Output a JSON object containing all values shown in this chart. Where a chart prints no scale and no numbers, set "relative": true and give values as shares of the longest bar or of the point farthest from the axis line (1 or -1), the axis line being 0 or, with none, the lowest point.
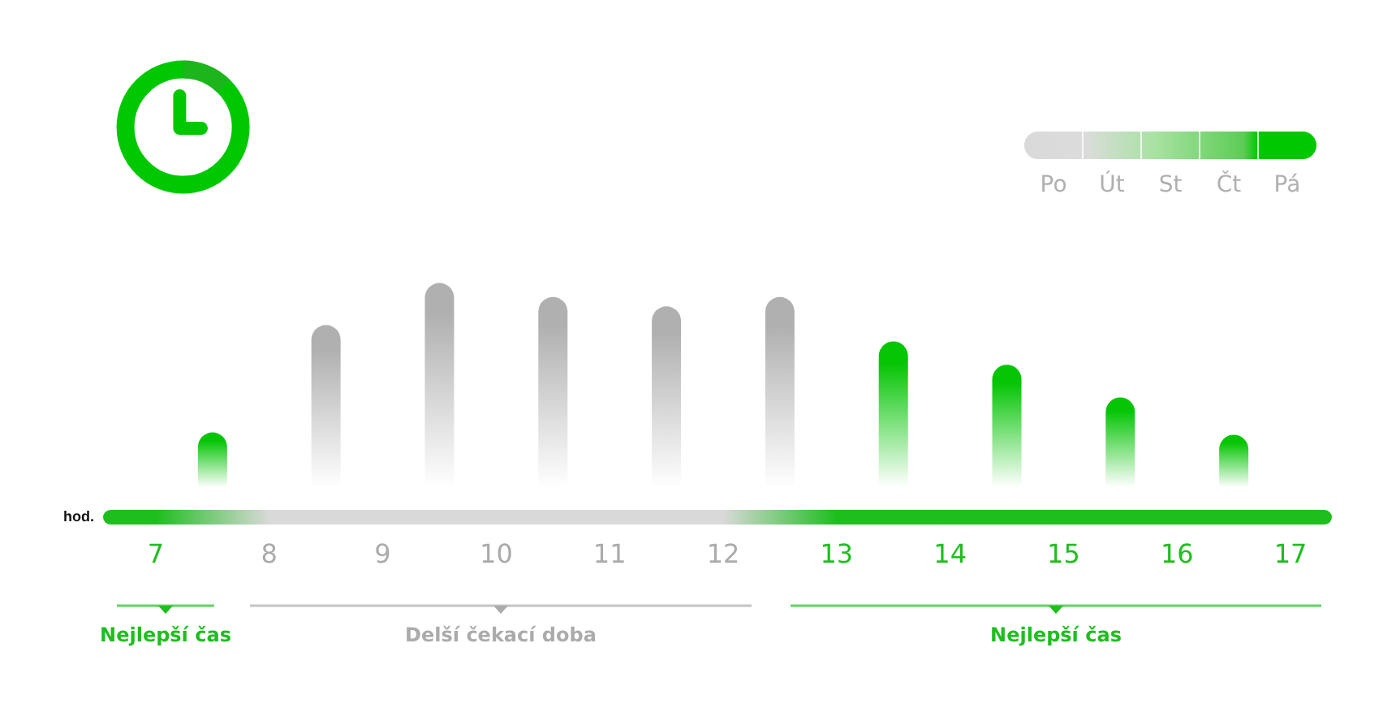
{
  "chart_data": {
    "type": "bar",
    "relative": true,
    "x": [
      7.5,
      8.5,
      9.5,
      10.5,
      11.5,
      12.5,
      13.5,
      14.5,
      15.5,
      16.5
    ],
    "values": [
      0.36,
      0.82,
      1,
      0.94,
      0.9,
      0.94,
      0.75,
      0.65,
      0.51,
      0.35
    ],
    "colors": [
      "#05c505",
      "#b0b0b0",
      "#b0b0b0",
      "#b0b0b0",
      "#b0b0b0",
      "#b0b0b0",
      "#05c505",
      "#05c505",
      "#05c505",
      "#05c505"
    ],
    "xlabel": "hod.",
    "xlim": [
      6.6,
      17.3
    ],
    "xticks": [
      7,
      8,
      9,
      10,
      11,
      12,
      13,
      14,
      15,
      16,
      17
    ],
    "annotations": [
      "Nejlepší čas",
      "Delší čekací doba",
      "Nejlepší čas"
    ],
    "clim": [
      0,
      5
    ],
    "cticks": [
      {
        "value": 0.5,
        "label": "Po"
      },
      {
        "value": 1.5,
        "label": "Út"
      },
      {
        "value": 2.5,
        "label": "St"
      },
      {
        "value": 3.5,
        "label": "Čt"
      },
      {
        "value": 4.5,
        "label": "Pá"
      }
    ]
  }
}
